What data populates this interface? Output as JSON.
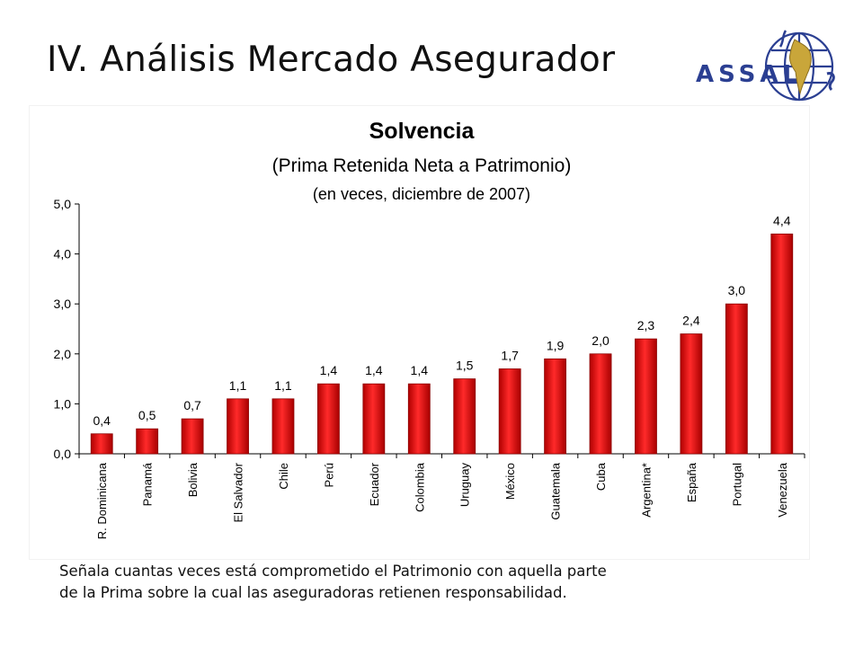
{
  "slide": {
    "title": "IV. Análisis Mercado Asegurador",
    "logo_text": "ASSAL",
    "caption_lines": [
      "Señala cuantas veces está comprometido el Patrimonio con aquella parte",
      "de la Prima sobre la cual las aseguradoras retienen responsabilidad."
    ]
  },
  "colors": {
    "bar": "#e01414",
    "bar_dark": "#8c0000",
    "logo": "#2b3f92",
    "logo_accent": "#c9a63a"
  },
  "chart_data": {
    "type": "bar",
    "title": "Solvencia",
    "subtitle": "(Prima Retenida Neta a Patrimonio)",
    "subtitle2": "(en veces, diciembre de 2007)",
    "xlabel": "",
    "ylabel": "",
    "ylim": [
      0,
      5
    ],
    "yticks": [
      "0,0",
      "1,0",
      "2,0",
      "3,0",
      "4,0",
      "5,0"
    ],
    "grid": false,
    "categories": [
      "R. Dominicana",
      "Panamá",
      "Bolivia",
      "El Salvador",
      "Chile",
      "Perú",
      "Ecuador",
      "Colombia",
      "Uruguay",
      "México",
      "Guatemala",
      "Cuba",
      "Argentina*",
      "España",
      "Portugal",
      "Venezuela"
    ],
    "values": [
      0.4,
      0.5,
      0.7,
      1.1,
      1.1,
      1.4,
      1.4,
      1.4,
      1.5,
      1.7,
      1.9,
      2.0,
      2.3,
      2.4,
      3.0,
      4.4
    ],
    "data_labels": [
      "0,4",
      "0,5",
      "0,7",
      "1,1",
      "1,1",
      "1,4",
      "1,4",
      "1,4",
      "1,5",
      "1,7",
      "1,9",
      "2,0",
      "2,3",
      "2,4",
      "3,0",
      "4,4"
    ]
  }
}
